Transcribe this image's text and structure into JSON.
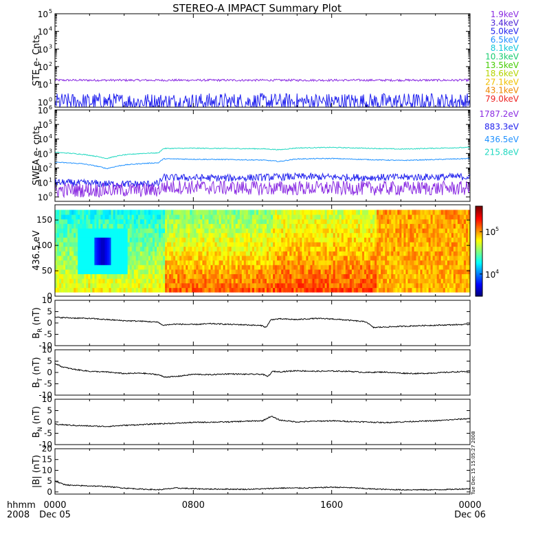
{
  "title": "STEREO-A IMPACT Summary Plot",
  "time_axis": {
    "corner_labels": [
      "hhmm",
      "2008"
    ],
    "ticks": [
      {
        "hhmm": "0000",
        "date": "Dec 05",
        "hour": 0
      },
      {
        "hhmm": "0800",
        "date": "",
        "hour": 8
      },
      {
        "hhmm": "1600",
        "date": "",
        "hour": 16
      },
      {
        "hhmm": "0000",
        "date": "Dec 06",
        "hour": 24
      }
    ],
    "range_hours": [
      0,
      24
    ]
  },
  "side_stamp": "Tue Dec 15 15:05:27 2008",
  "chart_data": [
    {
      "id": "ste",
      "type": "line",
      "ylabel": "STE e- Cnts",
      "yscale": "log",
      "ylim": [
        0.5,
        100000
      ],
      "ytick_exponents": [
        0,
        1,
        2,
        3,
        4,
        5
      ],
      "legend": [
        {
          "label": "1.9keV",
          "color": "#8a2be2"
        },
        {
          "label": "3.4keV",
          "color": "#4b22d6"
        },
        {
          "label": "5.0keV",
          "color": "#2222ee"
        },
        {
          "label": "6.5keV",
          "color": "#1e90ff"
        },
        {
          "label": "8.1keV",
          "color": "#10c8d8"
        },
        {
          "label": "10.3keV",
          "color": "#18cc70"
        },
        {
          "label": "13.5keV",
          "color": "#44cc00"
        },
        {
          "label": "18.6keV",
          "color": "#b4d400"
        },
        {
          "label": "27.1keV",
          "color": "#f0c000"
        },
        {
          "label": "43.1keV",
          "color": "#ee8800"
        },
        {
          "label": "79.0keV",
          "color": "#ee2222"
        }
      ],
      "series": [
        {
          "color": "#8a2be2",
          "approx_level": 17,
          "spread": 0.06
        },
        {
          "color": "#2222ee",
          "approx_level": 1,
          "spread": 0.5
        }
      ]
    },
    {
      "id": "swea",
      "type": "line",
      "ylabel": "SWEA e- cnts",
      "yscale": "log",
      "ylim": [
        0.5,
        1000000
      ],
      "ytick_exponents": [
        0,
        1,
        2,
        3,
        4,
        5,
        6
      ],
      "legend": [
        {
          "label": "1787.2eV",
          "color": "#8a2be2"
        },
        {
          "label": "883.3eV",
          "color": "#2222ee"
        },
        {
          "label": "436.5eV",
          "color": "#1e90ff"
        },
        {
          "label": "215.8eV",
          "color": "#20d8c0"
        }
      ],
      "series": [
        {
          "label": "215.8eV",
          "color": "#20d8c0",
          "points": [
            [
              0,
              1200
            ],
            [
              1.5,
              900
            ],
            [
              3,
              450
            ],
            [
              4,
              800
            ],
            [
              5,
              1000
            ],
            [
              6,
              1100
            ],
            [
              6.3,
              2200
            ],
            [
              8,
              2300
            ],
            [
              10,
              2200
            ],
            [
              12,
              2100
            ],
            [
              13,
              1800
            ],
            [
              14,
              2400
            ],
            [
              16,
              2600
            ],
            [
              18,
              2300
            ],
            [
              20,
              2000
            ],
            [
              22,
              2300
            ],
            [
              24,
              2600
            ]
          ]
        },
        {
          "label": "436.5eV",
          "color": "#1e90ff",
          "points": [
            [
              0,
              250
            ],
            [
              1.5,
              200
            ],
            [
              3,
              90
            ],
            [
              4,
              160
            ],
            [
              5,
              200
            ],
            [
              6,
              230
            ],
            [
              6.3,
              430
            ],
            [
              8,
              400
            ],
            [
              10,
              380
            ],
            [
              12,
              350
            ],
            [
              13,
              280
            ],
            [
              14,
              420
            ],
            [
              16,
              450
            ],
            [
              18,
              380
            ],
            [
              20,
              330
            ],
            [
              22,
              380
            ],
            [
              24,
              450
            ]
          ]
        },
        {
          "label": "883.3eV",
          "color": "#2222ee",
          "points": [
            [
              0,
              10
            ],
            [
              3,
              8
            ],
            [
              6,
              8
            ],
            [
              6.3,
              22
            ],
            [
              10,
              20
            ],
            [
              14,
              25
            ],
            [
              18,
              22
            ],
            [
              24,
              25
            ]
          ],
          "spread": 0.25
        },
        {
          "label": "1787.2eV",
          "color": "#8a2be2",
          "points": [
            [
              0,
              3
            ],
            [
              6,
              3
            ],
            [
              6.3,
              5
            ],
            [
              12,
              4
            ],
            [
              18,
              4
            ],
            [
              24,
              4
            ]
          ],
          "spread": 0.5
        }
      ]
    },
    {
      "id": "pad",
      "type": "heatmap",
      "ylabel": "436.5 eV",
      "ylim": [
        0,
        180
      ],
      "yticks": [
        0,
        50,
        100,
        150
      ],
      "colorbar": {
        "ticks": [
          {
            "label": "10",
            "exp": "4",
            "value": 10000
          },
          {
            "label": "10",
            "exp": "5",
            "value": 100000
          }
        ],
        "range": [
          3000,
          400000
        ],
        "scale": "log"
      },
      "blocks": [
        {
          "t": [
            0,
            6.3
          ],
          "low_level": 0.62,
          "high_level": 0.4
        },
        {
          "t": [
            6.3,
            12.5
          ],
          "low_level": 0.78,
          "high_level": 0.5
        },
        {
          "t": [
            12.5,
            18.5
          ],
          "low_level": 0.8,
          "high_level": 0.58
        },
        {
          "t": [
            18.5,
            24
          ],
          "low_level": 0.7,
          "high_level": 0.72
        }
      ],
      "feature": {
        "t": 2.7,
        "pitch": 90,
        "level": 0.0
      }
    },
    {
      "id": "br",
      "type": "line",
      "ylabel": "B",
      "ylabel_sub": "R",
      "yunit": "(nT)",
      "ylim": [
        -10,
        10
      ],
      "yticks": [
        -10,
        -5,
        0,
        5,
        10
      ],
      "points": [
        [
          0,
          2.5
        ],
        [
          1,
          2.2
        ],
        [
          2,
          2.0
        ],
        [
          3,
          1.5
        ],
        [
          4,
          1.0
        ],
        [
          5,
          0.8
        ],
        [
          6,
          0.3
        ],
        [
          6.2,
          -1.0
        ],
        [
          7,
          -0.5
        ],
        [
          8,
          -0.7
        ],
        [
          9,
          -0.3
        ],
        [
          10,
          -0.6
        ],
        [
          11,
          -0.8
        ],
        [
          12,
          -1.2
        ],
        [
          12.2,
          -2
        ],
        [
          12.5,
          1.5
        ],
        [
          13,
          1.8
        ],
        [
          14,
          1.5
        ],
        [
          15,
          2.0
        ],
        [
          16,
          1.8
        ],
        [
          17,
          1.2
        ],
        [
          18,
          0.5
        ],
        [
          18.4,
          -2.0
        ],
        [
          19,
          -1.8
        ],
        [
          20,
          -1.5
        ],
        [
          21,
          -1.2
        ],
        [
          22,
          -1.0
        ],
        [
          23,
          -0.8
        ],
        [
          24,
          -0.6
        ]
      ]
    },
    {
      "id": "bt",
      "type": "line",
      "ylabel": "B",
      "ylabel_sub": "T",
      "yunit": "(nT)",
      "ylim": [
        -10,
        10
      ],
      "yticks": [
        -10,
        -5,
        0,
        5,
        10
      ],
      "points": [
        [
          0,
          4
        ],
        [
          0.4,
          2.5
        ],
        [
          1,
          1.5
        ],
        [
          2,
          0.5
        ],
        [
          3,
          0.2
        ],
        [
          4,
          -0.5
        ],
        [
          5,
          -0.3
        ],
        [
          6,
          -1.0
        ],
        [
          6.3,
          -2.0
        ],
        [
          7,
          -1.8
        ],
        [
          8,
          -0.8
        ],
        [
          9,
          -1.0
        ],
        [
          10,
          -0.6
        ],
        [
          11,
          -0.8
        ],
        [
          12,
          -0.8
        ],
        [
          12.3,
          -1.8
        ],
        [
          12.6,
          0.5
        ],
        [
          13,
          0.3
        ],
        [
          14,
          0.8
        ],
        [
          15,
          0.5
        ],
        [
          16,
          0.6
        ],
        [
          17,
          0.5
        ],
        [
          18,
          0.0
        ],
        [
          19,
          0.2
        ],
        [
          20,
          -0.3
        ],
        [
          21,
          -0.5
        ],
        [
          22,
          -0.2
        ],
        [
          23,
          0.2
        ],
        [
          24,
          0.5
        ]
      ]
    },
    {
      "id": "bn",
      "type": "line",
      "ylabel": "B",
      "ylabel_sub": "N",
      "yunit": "(nT)",
      "ylim": [
        -10,
        10
      ],
      "yticks": [
        -10,
        -5,
        0,
        5,
        10
      ],
      "points": [
        [
          0,
          -1.0
        ],
        [
          1,
          -1.5
        ],
        [
          2,
          -1.8
        ],
        [
          3,
          -2.0
        ],
        [
          4,
          -1.5
        ],
        [
          5,
          -1.2
        ],
        [
          6,
          -0.8
        ],
        [
          7,
          -0.6
        ],
        [
          8,
          -0.2
        ],
        [
          9,
          -0.1
        ],
        [
          10,
          0.0
        ],
        [
          11,
          0.3
        ],
        [
          12,
          0.5
        ],
        [
          12.5,
          2.5
        ],
        [
          13,
          0.8
        ],
        [
          14,
          0.0
        ],
        [
          15,
          0.3
        ],
        [
          16,
          0.5
        ],
        [
          17,
          0.2
        ],
        [
          18,
          0.0
        ],
        [
          19,
          -0.3
        ],
        [
          20,
          0.0
        ],
        [
          21,
          0.3
        ],
        [
          22,
          0.5
        ],
        [
          23,
          1.0
        ],
        [
          24,
          1.5
        ]
      ]
    },
    {
      "id": "bmag",
      "type": "line",
      "ylabel": "|B| (nT)",
      "ylim": [
        -1,
        20
      ],
      "yticks": [
        0,
        5,
        10,
        15,
        20
      ],
      "points": [
        [
          0,
          5
        ],
        [
          0.5,
          3.5
        ],
        [
          1,
          3.0
        ],
        [
          2,
          2.8
        ],
        [
          3,
          2.5
        ],
        [
          4,
          1.8
        ],
        [
          5,
          1.3
        ],
        [
          6,
          1.0
        ],
        [
          7,
          1.8
        ],
        [
          8,
          1.5
        ],
        [
          9,
          1.3
        ],
        [
          10,
          1.3
        ],
        [
          11,
          1.2
        ],
        [
          12,
          1.4
        ],
        [
          13,
          1.8
        ],
        [
          14,
          1.8
        ],
        [
          15,
          1.9
        ],
        [
          16,
          2.2
        ],
        [
          17,
          2.0
        ],
        [
          18,
          1.5
        ],
        [
          19,
          1.2
        ],
        [
          20,
          1.0
        ],
        [
          21,
          1.0
        ],
        [
          22,
          1.0
        ],
        [
          23,
          1.2
        ],
        [
          24,
          1.5
        ]
      ]
    }
  ]
}
